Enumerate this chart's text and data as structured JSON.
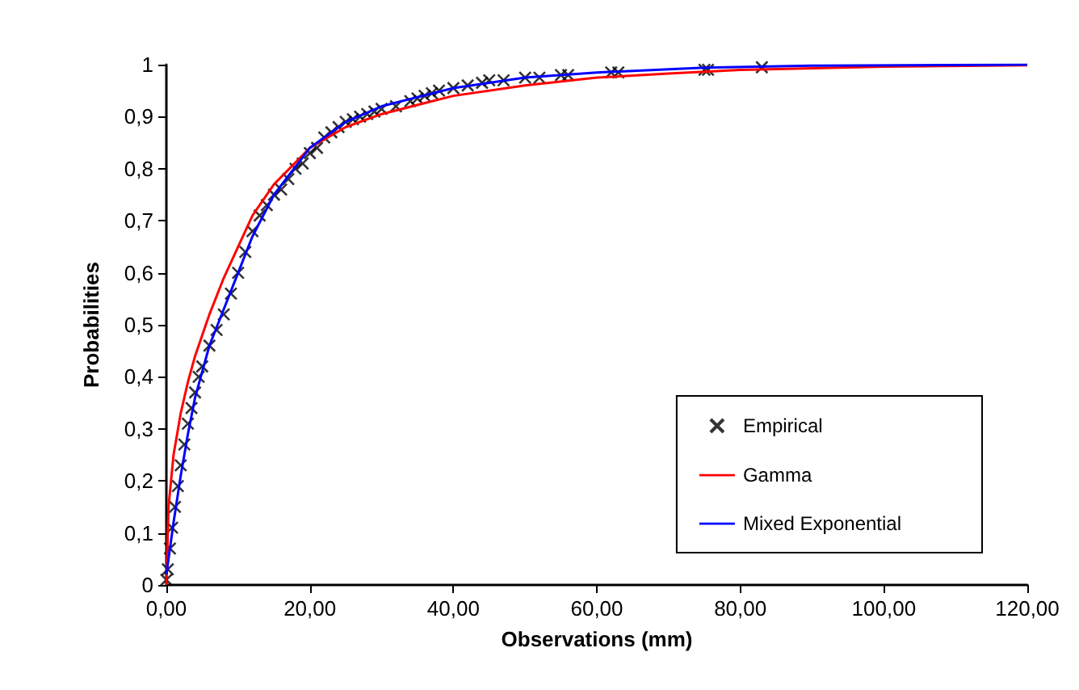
{
  "chart_data": {
    "type": "scatter",
    "xlabel": "Observations (mm)",
    "ylabel": "Probabilities",
    "xlim": [
      0,
      120
    ],
    "ylim": [
      0,
      1
    ],
    "xticks": [
      {
        "value": 0,
        "label": "0,00"
      },
      {
        "value": 20,
        "label": "20,00"
      },
      {
        "value": 40,
        "label": "40,00"
      },
      {
        "value": 60,
        "label": "60,00"
      },
      {
        "value": 80,
        "label": "80,00"
      },
      {
        "value": 100,
        "label": "100,00"
      },
      {
        "value": 120,
        "label": "120,00"
      }
    ],
    "yticks": [
      0,
      {
        "value": 0.1,
        "label": "0,1"
      },
      {
        "value": 0.2,
        "label": "0,2"
      },
      {
        "value": 0.3,
        "label": "0,3"
      },
      {
        "value": 0.4,
        "label": "0,4"
      },
      {
        "value": 0.5,
        "label": "0,5"
      },
      {
        "value": 0.6,
        "label": "0,6"
      },
      {
        "value": 0.7,
        "label": "0,7"
      },
      {
        "value": 0.8,
        "label": "0,8"
      },
      {
        "value": 0.9,
        "label": "0,9"
      },
      1
    ],
    "grid": false,
    "legend": "right",
    "series": [
      {
        "name": "Empirical",
        "marker": "cross",
        "color": "#000000",
        "x": [
          0,
          0.2,
          0.5,
          0.8,
          1.2,
          1.6,
          2,
          2.5,
          3,
          3.5,
          4,
          4.5,
          5,
          6,
          7,
          8,
          9,
          10,
          11,
          12,
          13,
          14,
          15,
          16,
          17,
          18,
          19,
          20,
          21,
          22,
          23,
          24,
          25,
          26,
          27,
          28,
          29,
          30,
          32,
          34,
          35,
          36,
          37,
          38,
          40,
          42,
          44,
          45,
          47,
          50,
          52,
          55,
          56,
          62,
          63,
          75,
          75.5,
          83
        ],
        "values": [
          0.01,
          0.03,
          0.07,
          0.11,
          0.15,
          0.19,
          0.23,
          0.27,
          0.31,
          0.34,
          0.37,
          0.4,
          0.42,
          0.46,
          0.49,
          0.52,
          0.56,
          0.6,
          0.64,
          0.68,
          0.71,
          0.73,
          0.75,
          0.76,
          0.78,
          0.8,
          0.81,
          0.83,
          0.84,
          0.86,
          0.87,
          0.88,
          0.89,
          0.895,
          0.9,
          0.905,
          0.91,
          0.915,
          0.92,
          0.93,
          0.935,
          0.94,
          0.945,
          0.95,
          0.955,
          0.96,
          0.965,
          0.97,
          0.97,
          0.975,
          0.975,
          0.98,
          0.98,
          0.985,
          0.985,
          0.99,
          0.99,
          0.995
        ]
      },
      {
        "name": "Gamma",
        "type": "line",
        "marker": "none",
        "color": "#ff0000",
        "x": [
          0,
          0.3,
          1,
          2,
          3,
          4,
          6,
          8,
          10,
          12,
          15,
          20,
          25,
          30,
          40,
          50,
          60,
          70,
          80,
          100,
          120
        ],
        "values": [
          0,
          0.15,
          0.25,
          0.33,
          0.39,
          0.44,
          0.52,
          0.59,
          0.65,
          0.71,
          0.77,
          0.84,
          0.88,
          0.905,
          0.94,
          0.96,
          0.975,
          0.983,
          0.99,
          0.996,
          0.999
        ]
      },
      {
        "name": "Mixed Exponential",
        "type": "line",
        "marker": "none",
        "color": "#0000ff",
        "x": [
          0,
          1,
          2,
          3,
          4,
          6,
          8,
          10,
          12,
          15,
          20,
          25,
          30,
          40,
          50,
          60,
          75,
          90,
          120
        ],
        "values": [
          0.02,
          0.12,
          0.21,
          0.29,
          0.36,
          0.46,
          0.53,
          0.6,
          0.67,
          0.75,
          0.84,
          0.89,
          0.92,
          0.955,
          0.975,
          0.985,
          0.994,
          0.998,
          1
        ]
      }
    ]
  }
}
